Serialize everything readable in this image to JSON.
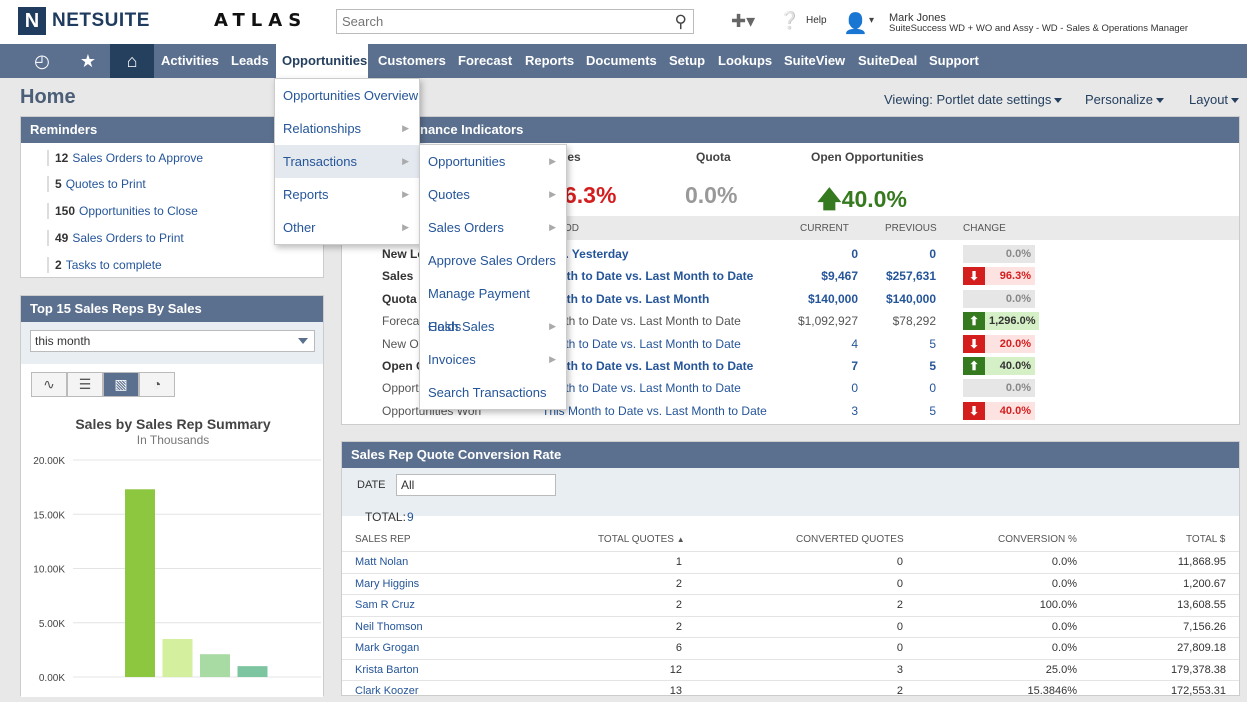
{
  "header": {
    "brand": "NETSUITE",
    "brand_mark": "N",
    "atlas": "ATLAS",
    "search_placeholder": "Search",
    "help_label": "Help",
    "user_name": "Mark Jones",
    "user_role": "SuiteSuccess WD + WO and Assy - WD - Sales & Operations Manager"
  },
  "nav": {
    "items": [
      "Activities",
      "Leads",
      "Opportunities",
      "Customers",
      "Forecast",
      "Reports",
      "Documents",
      "Setup",
      "Lookups",
      "SuiteView",
      "SuiteDeal",
      "Support"
    ],
    "active": "Opportunities"
  },
  "page": {
    "title": "Home",
    "viewing": "Viewing: Portlet date settings",
    "personalize": "Personalize",
    "layout": "Layout"
  },
  "reminders": {
    "title": "Reminders",
    "items": [
      {
        "count": "12",
        "label": "Sales Orders to Approve"
      },
      {
        "count": "5",
        "label": "Quotes to Print"
      },
      {
        "count": "150",
        "label": "Opportunities to Close"
      },
      {
        "count": "49",
        "label": "Sales Orders to Print"
      },
      {
        "count": "2",
        "label": "Tasks to complete"
      }
    ]
  },
  "kpi": {
    "title_visible": "nance Indicators",
    "sales_label_visible": "les",
    "sales_value_visible": "6.3%",
    "quota_label": "Quota",
    "quota_value": "0.0%",
    "open_label": "Open Opportunities",
    "open_value": "40.0%",
    "col_period_visible": "OD",
    "col_current": "CURRENT",
    "col_previous": "PREVIOUS",
    "col_change": "CHANGE",
    "rows": [
      {
        "name": "New Le",
        "period": "y vs. Yesterday",
        "current": "0",
        "previous": "0",
        "change": "0.0%",
        "dir": "flat",
        "bold": true,
        "link": true
      },
      {
        "name": "Sales",
        "period": "Month to Date vs. Last Month to Date",
        "current": "$9,467",
        "previous": "$257,631",
        "change": "96.3%",
        "dir": "down",
        "bold": true,
        "link": true
      },
      {
        "name": "Quota",
        "period": "Month to Date vs. Last Month",
        "current": "$140,000",
        "previous": "$140,000",
        "change": "0.0%",
        "dir": "flat",
        "bold": true,
        "link": true
      },
      {
        "name": "Foreca",
        "period": "Month to Date vs. Last Month to Date",
        "current": "$1,092,927",
        "previous": "$78,292",
        "change": "1,296.0%",
        "dir": "up",
        "bold": false,
        "link": false
      },
      {
        "name": "New Op",
        "period": "Month to Date vs. Last Month to Date",
        "current": "4",
        "previous": "5",
        "change": "20.0%",
        "dir": "down",
        "bold": false,
        "link": true
      },
      {
        "name": "Open O",
        "period": "Month to Date vs. Last Month to Date",
        "current": "7",
        "previous": "5",
        "change": "40.0%",
        "dir": "up",
        "bold": true,
        "link": true
      },
      {
        "name": "Opportu",
        "period": "Month to Date vs. Last Month to Date",
        "current": "0",
        "previous": "0",
        "change": "0.0%",
        "dir": "flat",
        "bold": false,
        "link": true
      },
      {
        "name": "Opportunities Won",
        "period": "This Month to Date vs. Last Month to Date",
        "current": "3",
        "previous": "5",
        "change": "40.0%",
        "dir": "down",
        "bold": false,
        "link": true
      }
    ]
  },
  "top_sales": {
    "title": "Top 15 Sales Reps By Sales",
    "period_select": "this month",
    "chart_title": "Sales by Sales Rep Summary",
    "chart_subtitle": "In Thousands"
  },
  "chart_data": {
    "type": "bar",
    "title": "Sales by Sales Rep Summary",
    "subtitle": "In Thousands",
    "ylim": [
      0,
      20
    ],
    "yticks": [
      "0.00K",
      "5.00K",
      "10.00K",
      "15.00K",
      "20.00K"
    ],
    "values": [
      17.3,
      3.5,
      2.1,
      1.0
    ],
    "colors": [
      "#8dc63f",
      "#d4ef9e",
      "#a7dba3",
      "#7dc4a0"
    ]
  },
  "conversion": {
    "title": "Sales Rep Quote Conversion Rate",
    "date_label": "DATE",
    "date_value": "All",
    "total_label": "TOTAL:",
    "total_value": "9",
    "headers": [
      "SALES REP",
      "TOTAL QUOTES",
      "CONVERTED QUOTES",
      "CONVERSION %",
      "TOTAL $"
    ],
    "sort_glyph": "▲",
    "rows": [
      {
        "rep": "Matt Nolan",
        "total": "1",
        "converted": "0",
        "pct": "0.0%",
        "amount": "11,868.95"
      },
      {
        "rep": "Mary Higgins",
        "total": "2",
        "converted": "0",
        "pct": "0.0%",
        "amount": "1,200.67"
      },
      {
        "rep": "Sam R Cruz",
        "total": "2",
        "converted": "2",
        "pct": "100.0%",
        "amount": "13,608.55"
      },
      {
        "rep": "Neil Thomson",
        "total": "2",
        "converted": "0",
        "pct": "0.0%",
        "amount": "7,156.26"
      },
      {
        "rep": "Mark Grogan",
        "total": "6",
        "converted": "0",
        "pct": "0.0%",
        "amount": "27,809.18"
      },
      {
        "rep": "Krista Barton",
        "total": "12",
        "converted": "3",
        "pct": "25.0%",
        "amount": "179,378.38"
      },
      {
        "rep": "Clark Koozer",
        "total": "13",
        "converted": "2",
        "pct": "15.3846%",
        "amount": "172,553.31"
      }
    ]
  },
  "menu_main": [
    {
      "label": "Opportunities Overview",
      "sub": false
    },
    {
      "label": "Relationships",
      "sub": true
    },
    {
      "label": "Transactions",
      "sub": true
    },
    {
      "label": "Reports",
      "sub": true
    },
    {
      "label": "Other",
      "sub": true
    }
  ],
  "menu_sub": [
    {
      "label": "Opportunities",
      "sub": true
    },
    {
      "label": "Quotes",
      "sub": true
    },
    {
      "label": "Sales Orders",
      "sub": true
    },
    {
      "label": "Approve Sales Orders",
      "sub": false
    },
    {
      "label": "Manage Payment Holds",
      "sub": false
    },
    {
      "label": "Cash Sales",
      "sub": true
    },
    {
      "label": "Invoices",
      "sub": true
    },
    {
      "label": "Search Transactions",
      "sub": false
    }
  ],
  "colors": {
    "nav": "#5b708f",
    "nav_home": "#25405f",
    "link": "#255599",
    "down": "#d41e1e",
    "up": "#367a1f"
  }
}
